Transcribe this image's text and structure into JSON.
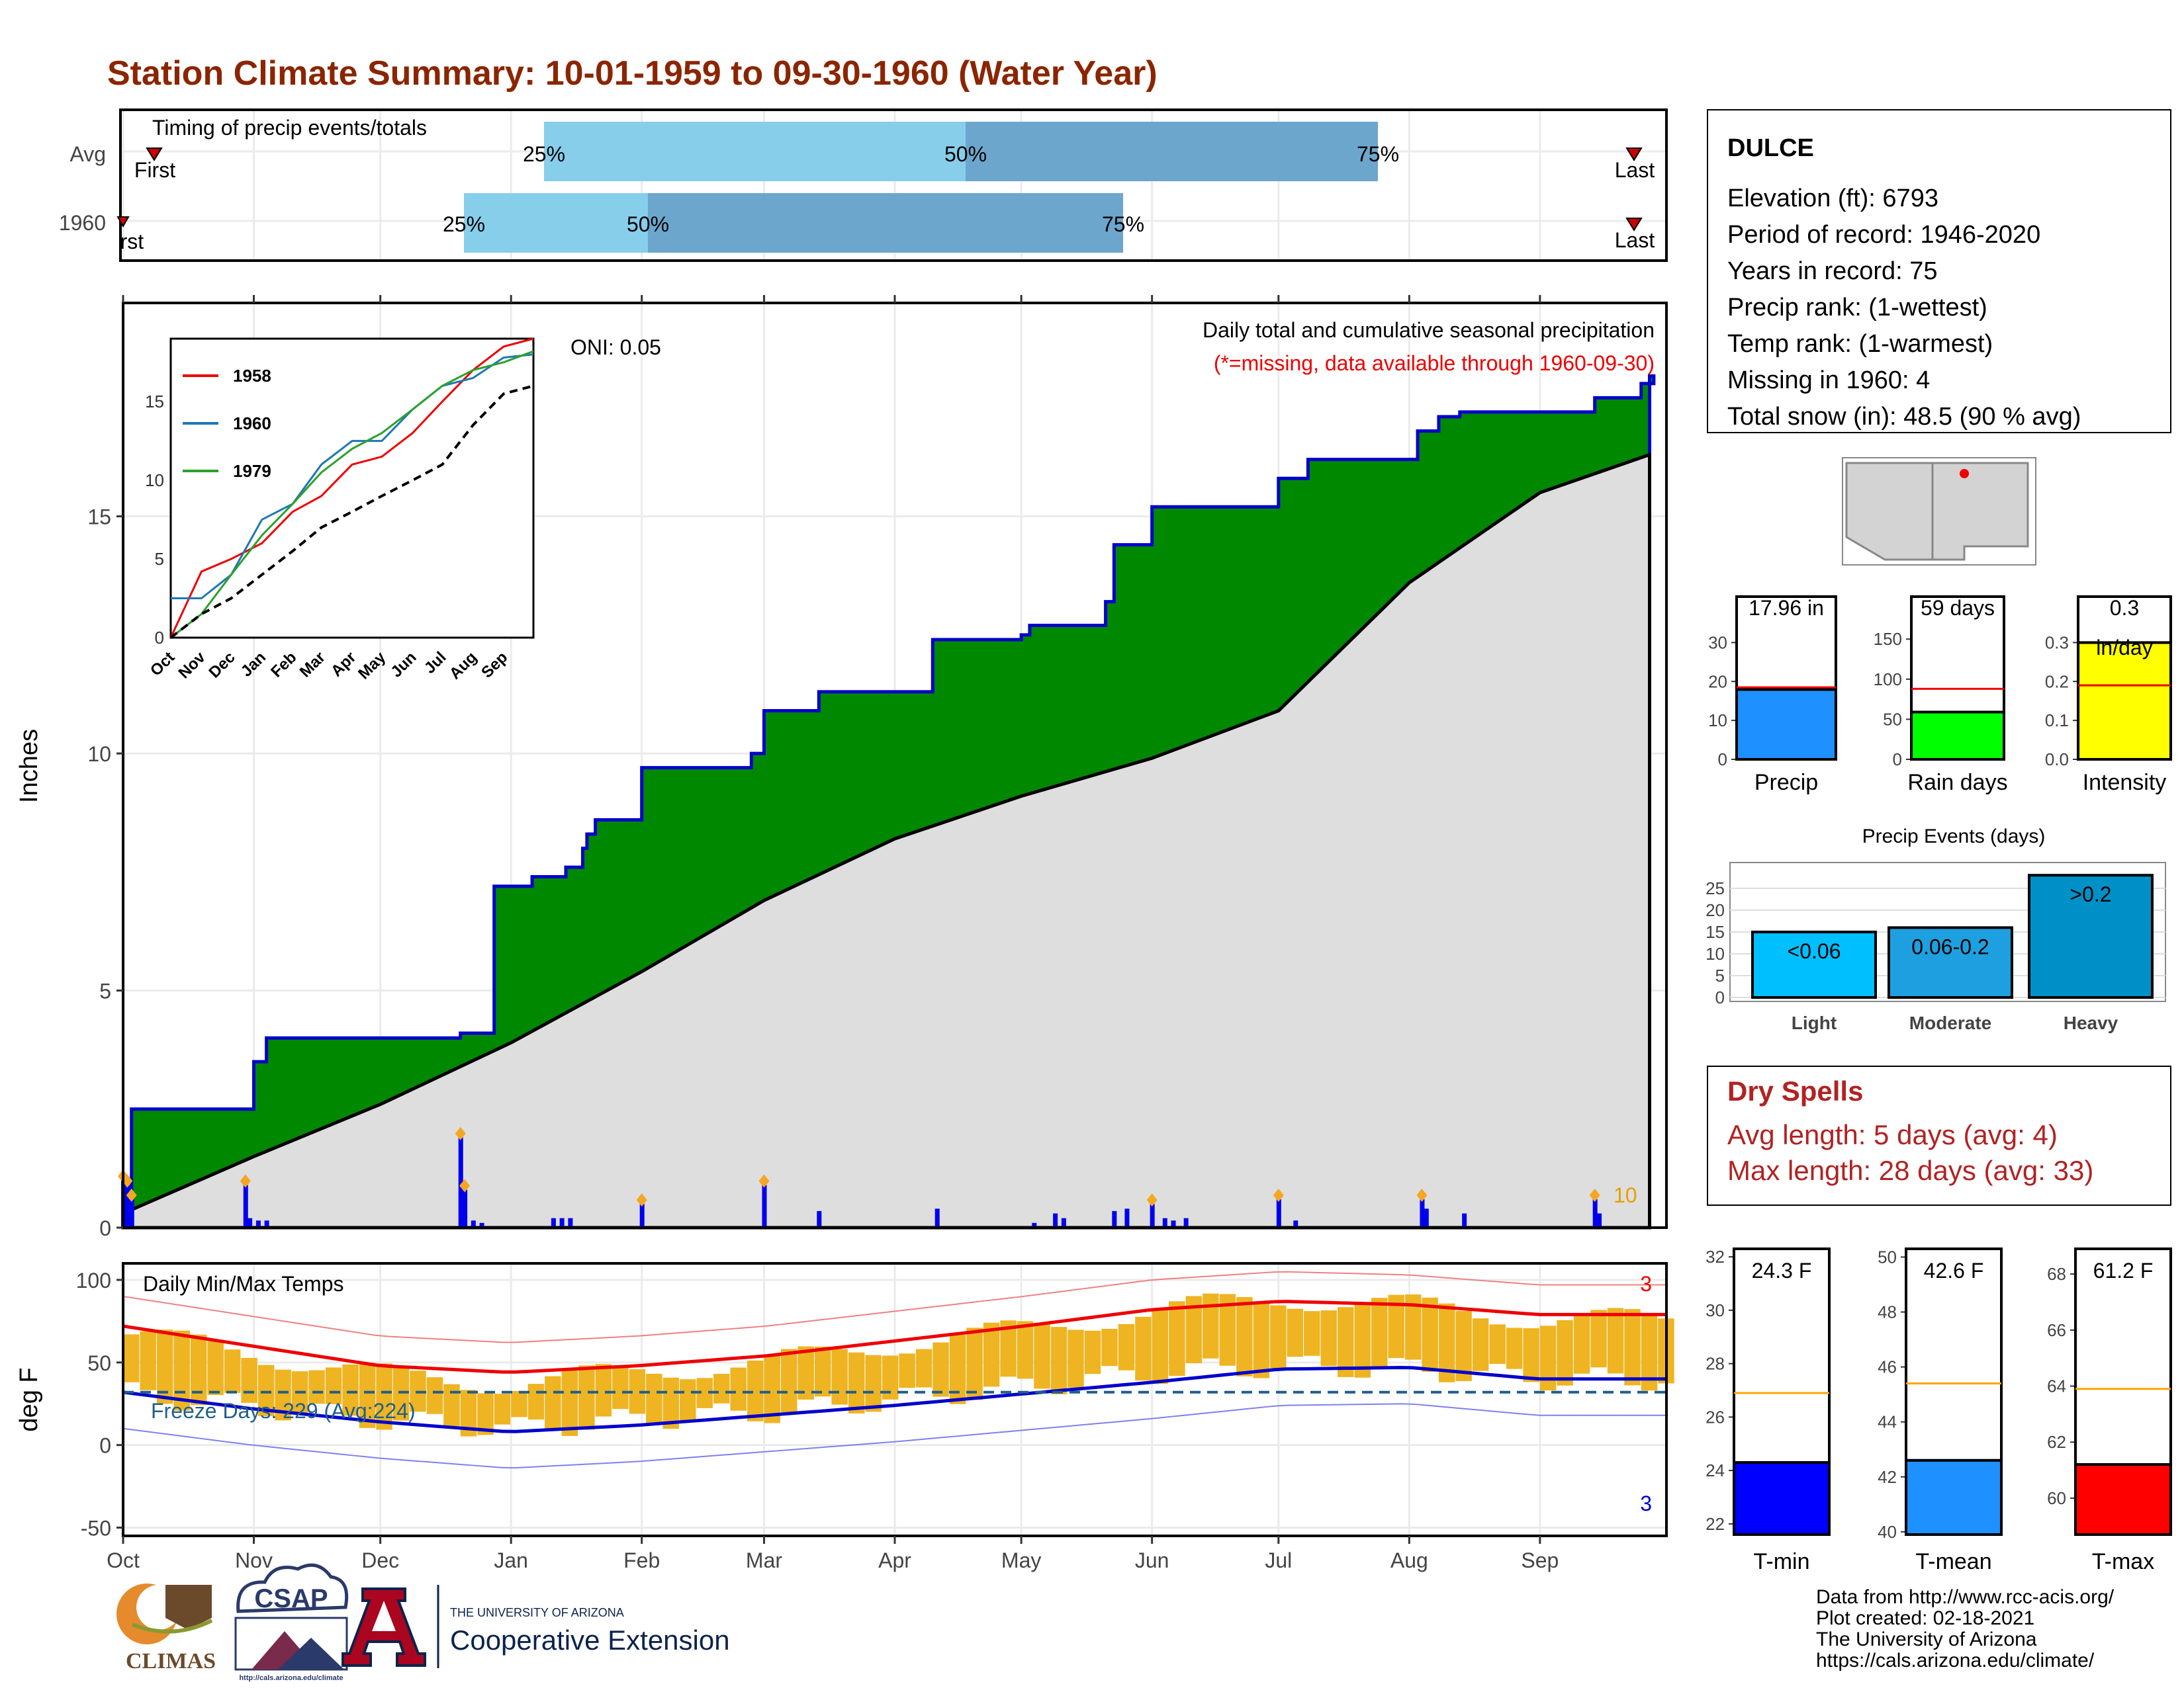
{
  "title": "Station Climate Summary: 10-01-1959 to 09-30-1960 (Water Year)",
  "colors": {
    "title": "#8B2500",
    "green": "#008800",
    "blue": "#0000CC",
    "gold": "#EEB422",
    "light_blue": "#87CEEB",
    "mid_blue": "#6CA6CD",
    "dry": "#B22222"
  },
  "months": [
    "Oct",
    "Nov",
    "Dec",
    "Jan",
    "Feb",
    "Mar",
    "Apr",
    "May",
    "Jun",
    "Jul",
    "Aug",
    "Sep"
  ],
  "timing": {
    "label": "Timing of precip events/totals",
    "rows": [
      {
        "name": "Avg",
        "q25": "25%",
        "q50": "50%",
        "q75": "75%",
        "first": "First",
        "last": "Last"
      },
      {
        "name": "1960",
        "q25": "25%",
        "q50": "50%",
        "q75": "75%",
        "first": "First",
        "last": "Last"
      }
    ]
  },
  "precip_panel": {
    "ylabel": "Inches",
    "oni": "ONI: 0.05",
    "caption": "Daily total and cumulative seasonal precipitation",
    "missing_note": "(*=missing, data available through 1960-09-30)",
    "count_label": "10",
    "yticks": [
      "0",
      "5",
      "10",
      "15"
    ],
    "inset": {
      "legend": [
        "1958",
        "1960",
        "1979"
      ],
      "yticks": [
        "0",
        "5",
        "10",
        "15"
      ],
      "xticks": [
        "Oct",
        "Nov",
        "Dec",
        "Jan",
        "Feb",
        "Mar",
        "Apr",
        "May",
        "Jun",
        "Jul",
        "Aug",
        "Sep"
      ]
    }
  },
  "temp_panel": {
    "ylabel": "deg F",
    "label": "Daily Min/Max Temps",
    "freeze": "Freeze Days: 229 (Avg:224)",
    "yticks": [
      "-50",
      "0",
      "50",
      "100"
    ],
    "max_count": "3",
    "min_count": "3"
  },
  "station": {
    "name": "DULCE",
    "lines": [
      "Elevation (ft): 6793",
      "Period of record: 1946-2020",
      "Years in record: 75",
      "Precip rank:  (1-wettest)",
      "Temp rank:  (1-warmest)",
      "Missing in 1960: 4",
      "Total snow (in): 48.5 (90 % avg)"
    ]
  },
  "gauges": [
    {
      "label": "Precip",
      "value_text": "17.96 in",
      "yticks": [
        "0",
        "10",
        "20",
        "30"
      ]
    },
    {
      "label": "Rain days",
      "value_text": "59 days",
      "yticks": [
        "0",
        "50",
        "100",
        "150"
      ]
    },
    {
      "label": "Intensity",
      "value_text": "0.3",
      "unit": "in/day",
      "yticks": [
        "0.0",
        "0.1",
        "0.2",
        "0.3"
      ]
    }
  ],
  "events": {
    "title": "Precip Events (days)",
    "bars": [
      {
        "label": "Light",
        "text": "<0.06"
      },
      {
        "label": "Moderate",
        "text": "0.06-0.2"
      },
      {
        "label": "Heavy",
        "text": ">0.2"
      }
    ],
    "yticks": [
      "0",
      "5",
      "10",
      "15",
      "20",
      "25"
    ]
  },
  "dry_spells": {
    "title": "Dry Spells",
    "avg": "Avg length: 5 days (avg: 4)",
    "max": "Max length: 28 days (avg: 33)"
  },
  "temps": [
    {
      "label": "T-min",
      "value_text": "24.3 F",
      "yticks": [
        "22",
        "24",
        "26",
        "28",
        "30",
        "32"
      ]
    },
    {
      "label": "T-mean",
      "value_text": "42.6 F",
      "yticks": [
        "40",
        "42",
        "44",
        "46",
        "48",
        "50"
      ]
    },
    {
      "label": "T-max",
      "value_text": "61.2 F",
      "yticks": [
        "60",
        "62",
        "64",
        "66",
        "68"
      ]
    }
  ],
  "footer": {
    "lines": [
      "Data from http://www.rcc-acis.org/",
      "Plot created: 02-18-2021",
      "The University of Arizona",
      "https://cals.arizona.edu/climate/"
    ],
    "climas": "CLIMAS",
    "csap": "CSAP",
    "csap_url": "http://cals.arizona.edu/climate",
    "ua_top": "THE UNIVERSITY OF ARIZONA",
    "ua_bottom": "Cooperative Extension"
  },
  "chart_data": [
    {
      "type": "area",
      "name": "cumulative precipitation",
      "ylim": [
        0,
        19.5
      ],
      "x": [
        "Oct 1",
        "Oct 3",
        "Oct 29",
        "Nov 1",
        "Nov 4",
        "Dec 20",
        "Dec 28",
        "Jan 6",
        "Jan 14",
        "Jan 18",
        "Jan 19",
        "Jan 21",
        "Feb 1",
        "Feb 27",
        "Mar 1",
        "Mar 14",
        "Apr 10",
        "May 1",
        "May 3",
        "May 21",
        "May 23",
        "Jun 1",
        "Jul 1",
        "Jul 8",
        "Aug 3",
        "Aug 8",
        "Aug 13",
        "Sep 14",
        "Sep 25",
        "Sep 28"
      ],
      "values": [
        0.2,
        2.5,
        2.5,
        3.5,
        4.0,
        4.1,
        7.2,
        7.4,
        7.6,
        8.0,
        8.3,
        8.6,
        9.7,
        10.0,
        10.9,
        11.3,
        12.4,
        12.5,
        12.7,
        13.2,
        14.4,
        15.2,
        15.8,
        16.2,
        16.8,
        17.1,
        17.2,
        17.5,
        17.8,
        17.96
      ],
      "avg_x": [
        "Oct 1",
        "Nov 1",
        "Dec 1",
        "Jan 1",
        "Feb 1",
        "Mar 1",
        "Apr 1",
        "May 1",
        "Jun 1",
        "Jul 1",
        "Aug 1",
        "Sep 1",
        "Sep 30"
      ],
      "avg_values": [
        0.3,
        1.5,
        2.6,
        3.9,
        5.4,
        6.9,
        8.2,
        9.1,
        9.9,
        10.9,
        13.6,
        15.5,
        16.3
      ]
    },
    {
      "type": "bar",
      "name": "daily precipitation",
      "x": [
        "Oct 1",
        "Oct 2",
        "Oct 3",
        "Oct 30",
        "Oct 31",
        "Nov 2",
        "Nov 4",
        "Dec 20",
        "Dec 21",
        "Dec 23",
        "Dec 25",
        "Jan 11",
        "Jan 13",
        "Jan 15",
        "Feb 1",
        "Mar 1",
        "Mar 14",
        "Apr 11",
        "May 4",
        "May 9",
        "May 11",
        "May 23",
        "May 26",
        "Jun 1",
        "Jun 4",
        "Jun 6",
        "Jun 9",
        "Jul 1",
        "Jul 5",
        "Aug 4",
        "Aug 5",
        "Aug 14",
        "Sep 14",
        "Sep 15"
      ],
      "values": [
        1.0,
        0.9,
        0.6,
        0.9,
        0.2,
        0.15,
        0.15,
        1.9,
        0.8,
        0.15,
        0.1,
        0.2,
        0.2,
        0.2,
        0.5,
        0.9,
        0.35,
        0.4,
        0.1,
        0.3,
        0.2,
        0.35,
        0.4,
        0.5,
        0.2,
        0.15,
        0.2,
        0.6,
        0.15,
        0.6,
        0.4,
        0.3,
        0.6,
        0.3
      ]
    },
    {
      "type": "line",
      "name": "daily min/max temps",
      "ylim": [
        -55,
        110
      ],
      "x": [
        "Oct",
        "Nov",
        "Dec",
        "Jan",
        "Feb",
        "Mar",
        "Apr",
        "May",
        "Jun",
        "Jul",
        "Aug",
        "Sep"
      ],
      "series": [
        {
          "name": "Tmax",
          "values": [
            67,
            55,
            42,
            37,
            45,
            50,
            62,
            70,
            82,
            89,
            84,
            76
          ]
        },
        {
          "name": "Tmin",
          "values": [
            31,
            23,
            15,
            10,
            16,
            20,
            28,
            36,
            44,
            48,
            46,
            40
          ]
        },
        {
          "name": "Avg max",
          "values": [
            72,
            60,
            48,
            44,
            48,
            54,
            63,
            72,
            82,
            87,
            85,
            79
          ]
        },
        {
          "name": "Avg min",
          "values": [
            32,
            22,
            14,
            8,
            12,
            18,
            24,
            31,
            38,
            46,
            47,
            40
          ]
        }
      ]
    },
    {
      "type": "line",
      "name": "inset cumulative precip",
      "ylim": [
        0,
        19
      ],
      "x": [
        "Oct",
        "Nov",
        "Dec",
        "Jan",
        "Feb",
        "Mar",
        "Apr",
        "May",
        "Jun",
        "Jul",
        "Aug",
        "Sep",
        "Sep 30"
      ],
      "series": [
        {
          "name": "1958",
          "values": [
            0,
            4.2,
            5,
            6,
            8,
            9,
            11,
            11.5,
            13,
            15,
            17,
            18.5,
            19
          ]
        },
        {
          "name": "1960",
          "values": [
            2.5,
            2.5,
            4,
            7.5,
            8.5,
            11,
            12.5,
            12.5,
            14.5,
            16,
            16.5,
            17.8,
            18
          ]
        },
        {
          "name": "1979",
          "values": [
            0,
            1.5,
            4,
            6.5,
            8.5,
            10.5,
            12,
            13,
            14.5,
            16,
            17,
            17.5,
            18.2
          ]
        },
        {
          "name": "Average",
          "values": [
            0,
            1.5,
            2.5,
            4,
            5.5,
            7,
            8,
            9,
            10,
            11,
            13.5,
            15.5,
            16
          ]
        }
      ]
    },
    {
      "type": "bar",
      "name": "annual gauges",
      "categories": [
        "Precip",
        "Rain days",
        "Intensity"
      ],
      "values": [
        17.96,
        59,
        0.3
      ],
      "avg": [
        18.5,
        88,
        0.19
      ],
      "ylim": [
        [
          0,
          35
        ],
        [
          0,
          170
        ],
        [
          0,
          0.35
        ]
      ]
    },
    {
      "type": "bar",
      "name": "precip events",
      "categories": [
        "Light",
        "Moderate",
        "Heavy"
      ],
      "values": [
        15,
        16,
        28
      ],
      "ylim": [
        0,
        30
      ]
    },
    {
      "type": "bar",
      "name": "temperature gauges",
      "categories": [
        "T-min",
        "T-mean",
        "T-max"
      ],
      "values": [
        24.3,
        42.6,
        61.2
      ],
      "avg": [
        26.9,
        45.4,
        63.9
      ],
      "ylim": [
        [
          21.6,
          32.3
        ],
        [
          39.9,
          50.3
        ],
        [
          58.7,
          68.9
        ]
      ]
    }
  ]
}
